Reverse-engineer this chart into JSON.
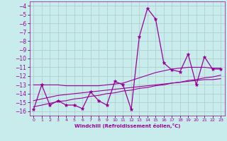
{
  "xlabel": "Windchill (Refroidissement éolien,°C)",
  "bg_color": "#c8ecec",
  "line_color": "#990099",
  "grid_color": "#b0c8c8",
  "xlim": [
    -0.5,
    23.5
  ],
  "ylim": [
    -16.5,
    -3.5
  ],
  "xticks": [
    0,
    1,
    2,
    3,
    4,
    5,
    6,
    7,
    8,
    9,
    10,
    11,
    12,
    13,
    14,
    15,
    16,
    17,
    18,
    19,
    20,
    21,
    22,
    23
  ],
  "yticks": [
    -4,
    -5,
    -6,
    -7,
    -8,
    -9,
    -10,
    -11,
    -12,
    -13,
    -14,
    -15,
    -16
  ],
  "x_data": [
    0,
    1,
    2,
    3,
    4,
    5,
    6,
    7,
    8,
    9,
    10,
    11,
    12,
    13,
    14,
    15,
    16,
    17,
    18,
    19,
    20,
    21,
    22,
    23
  ],
  "y_series1": [
    -15.8,
    -13.0,
    -15.3,
    -14.8,
    -15.3,
    -15.3,
    -15.7,
    -13.8,
    -14.8,
    -15.3,
    -12.6,
    -13.0,
    -15.8,
    -7.5,
    -4.3,
    -5.5,
    -10.5,
    -11.3,
    -11.5,
    -9.5,
    -13.0,
    -9.8,
    -11.2,
    -11.2
  ],
  "y_trend1": [
    -13.0,
    -13.0,
    -13.0,
    -13.0,
    -13.1,
    -13.1,
    -13.1,
    -13.1,
    -13.1,
    -13.0,
    -12.9,
    -12.8,
    -12.5,
    -12.2,
    -11.9,
    -11.6,
    -11.4,
    -11.2,
    -11.1,
    -11.0,
    -11.0,
    -11.0,
    -11.1,
    -11.1
  ],
  "y_trend2": [
    -14.8,
    -14.6,
    -14.4,
    -14.2,
    -14.1,
    -14.0,
    -13.9,
    -13.8,
    -13.7,
    -13.6,
    -13.5,
    -13.4,
    -13.3,
    -13.2,
    -13.1,
    -13.0,
    -12.9,
    -12.8,
    -12.7,
    -12.6,
    -12.5,
    -12.4,
    -12.4,
    -12.3
  ],
  "y_trend3": [
    -15.5,
    -15.3,
    -15.1,
    -14.9,
    -14.8,
    -14.6,
    -14.5,
    -14.3,
    -14.2,
    -14.0,
    -13.9,
    -13.7,
    -13.6,
    -13.4,
    -13.3,
    -13.1,
    -13.0,
    -12.8,
    -12.7,
    -12.5,
    -12.4,
    -12.2,
    -12.1,
    -11.9
  ]
}
